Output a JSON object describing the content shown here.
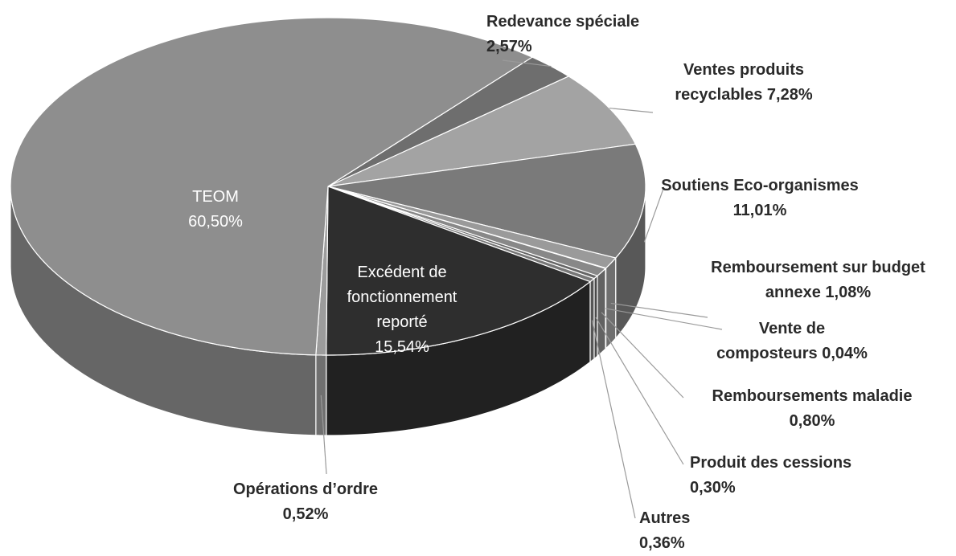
{
  "chart_data": {
    "type": "pie",
    "three_d": true,
    "categories": [
      "Redevance spéciale",
      "Ventes produits recyclables",
      "Soutiens Eco-organismes",
      "Remboursement sur budget annexe",
      "Vente de composteurs",
      "Remboursements maladie",
      "Produit des cessions",
      "Autres",
      "Excédent de fonctionnement reporté",
      "Opérations d’ordre",
      "TEOM"
    ],
    "values": [
      2.57,
      7.28,
      11.01,
      1.08,
      0.04,
      0.8,
      0.3,
      0.36,
      15.54,
      0.52,
      60.5
    ],
    "value_labels": [
      "2,57%",
      "7,28%",
      "11,01%",
      "1,08%",
      "0,04%",
      "0,80%",
      "0,30%",
      "0,36%",
      "15,54%",
      "0,52%",
      "60,50%"
    ],
    "colors": [
      "#6e6e6e",
      "#a3a3a3",
      "#7a7a7a",
      "#9a9a9a",
      "#555555",
      "#888888",
      "#666666",
      "#777777",
      "#2e2e2e",
      "#9c9c9c",
      "#8e8e8e"
    ]
  }
}
